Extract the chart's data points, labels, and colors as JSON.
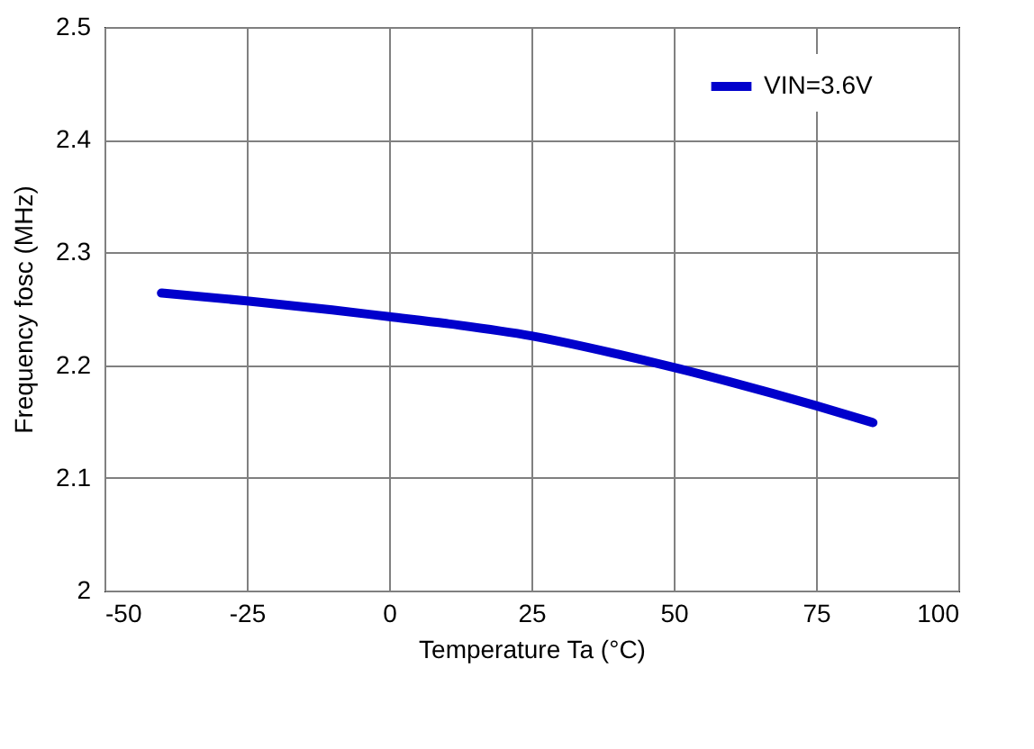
{
  "chart_data": {
    "type": "line",
    "xlabel": "Temperature Ta (°C)",
    "ylabel": "Frequency  fosc (MHz)",
    "x": [
      -40,
      -25,
      -10,
      0,
      10,
      25,
      40,
      50,
      60,
      75,
      85
    ],
    "series": [
      {
        "name": "VIN=3.6V",
        "color": "#0000cc",
        "values": [
          2.264,
          2.257,
          2.249,
          2.243,
          2.237,
          2.226,
          2.21,
          2.198,
          2.185,
          2.164,
          2.149
        ]
      }
    ],
    "xlim": [
      -50,
      100
    ],
    "xticks": [
      -50,
      -25,
      0,
      25,
      50,
      75,
      100
    ],
    "ylim": [
      2,
      2.5
    ],
    "yticks": [
      2,
      2.1,
      2.2,
      2.3,
      2.4,
      2.5
    ],
    "grid": true,
    "legend": "top right",
    "marker": "none",
    "line_style": "solid"
  }
}
